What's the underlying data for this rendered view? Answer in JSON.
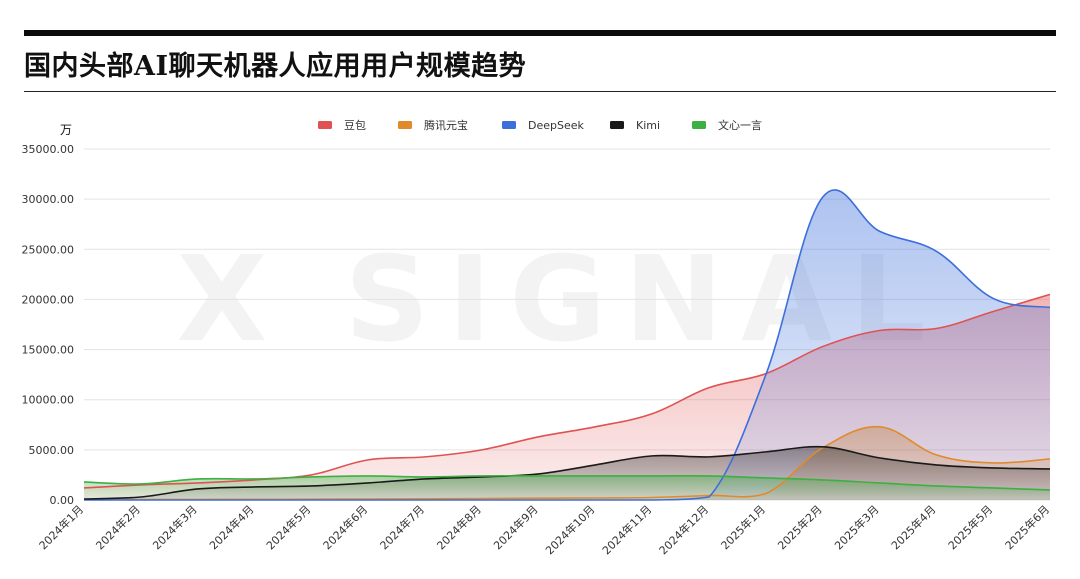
{
  "title": "国内头部AI聊天机器人应用用户规模趋势",
  "watermark": "X SIGNAL",
  "chart_data": {
    "type": "area",
    "unit_label": "万",
    "x": [
      "2024年1月",
      "2024年2月",
      "2024年3月",
      "2024年4月",
      "2024年5月",
      "2024年6月",
      "2024年7月",
      "2024年8月",
      "2024年9月",
      "2024年10月",
      "2024年11月",
      "2024年12月",
      "2025年1月",
      "2025年2月",
      "2025年3月",
      "2025年4月",
      "2025年5月",
      "2025年6月"
    ],
    "ylim": [
      0,
      35000
    ],
    "yticks": [
      "0.00",
      "5000.00",
      "10000.00",
      "15000.00",
      "20000.00",
      "25000.00",
      "30000.00",
      "35000.00"
    ],
    "ytick_values": [
      0,
      5000,
      10000,
      15000,
      20000,
      25000,
      30000,
      35000
    ],
    "grid": true,
    "legend_position": "top-center",
    "series": [
      {
        "name": "豆包",
        "color": "#e05252",
        "values": [
          1200,
          1500,
          1700,
          2000,
          2500,
          4000,
          4300,
          5000,
          6300,
          7300,
          8600,
          11200,
          12600,
          15300,
          16900,
          17100,
          18800,
          20500
        ]
      },
      {
        "name": "腾讯元宝",
        "color": "#e08a2c",
        "values": [
          40,
          50,
          60,
          70,
          80,
          100,
          120,
          150,
          180,
          200,
          250,
          450,
          650,
          5200,
          7300,
          4500,
          3700,
          4100
        ]
      },
      {
        "name": "DeepSeek",
        "color": "#3d6fdb",
        "values": [
          0,
          0,
          0,
          0,
          0,
          0,
          0,
          0,
          0,
          0,
          0,
          300,
          12500,
          30200,
          26800,
          24800,
          20100,
          19200
        ]
      },
      {
        "name": "Kimi",
        "color": "#1a1a1a",
        "values": [
          100,
          300,
          1100,
          1300,
          1400,
          1700,
          2100,
          2300,
          2600,
          3500,
          4400,
          4300,
          4800,
          5300,
          4200,
          3500,
          3200,
          3100
        ]
      },
      {
        "name": "文心一言",
        "color": "#3cb043",
        "values": [
          1800,
          1600,
          2100,
          2100,
          2300,
          2400,
          2300,
          2400,
          2400,
          2400,
          2400,
          2400,
          2200,
          2000,
          1700,
          1400,
          1200,
          1000
        ]
      }
    ]
  }
}
